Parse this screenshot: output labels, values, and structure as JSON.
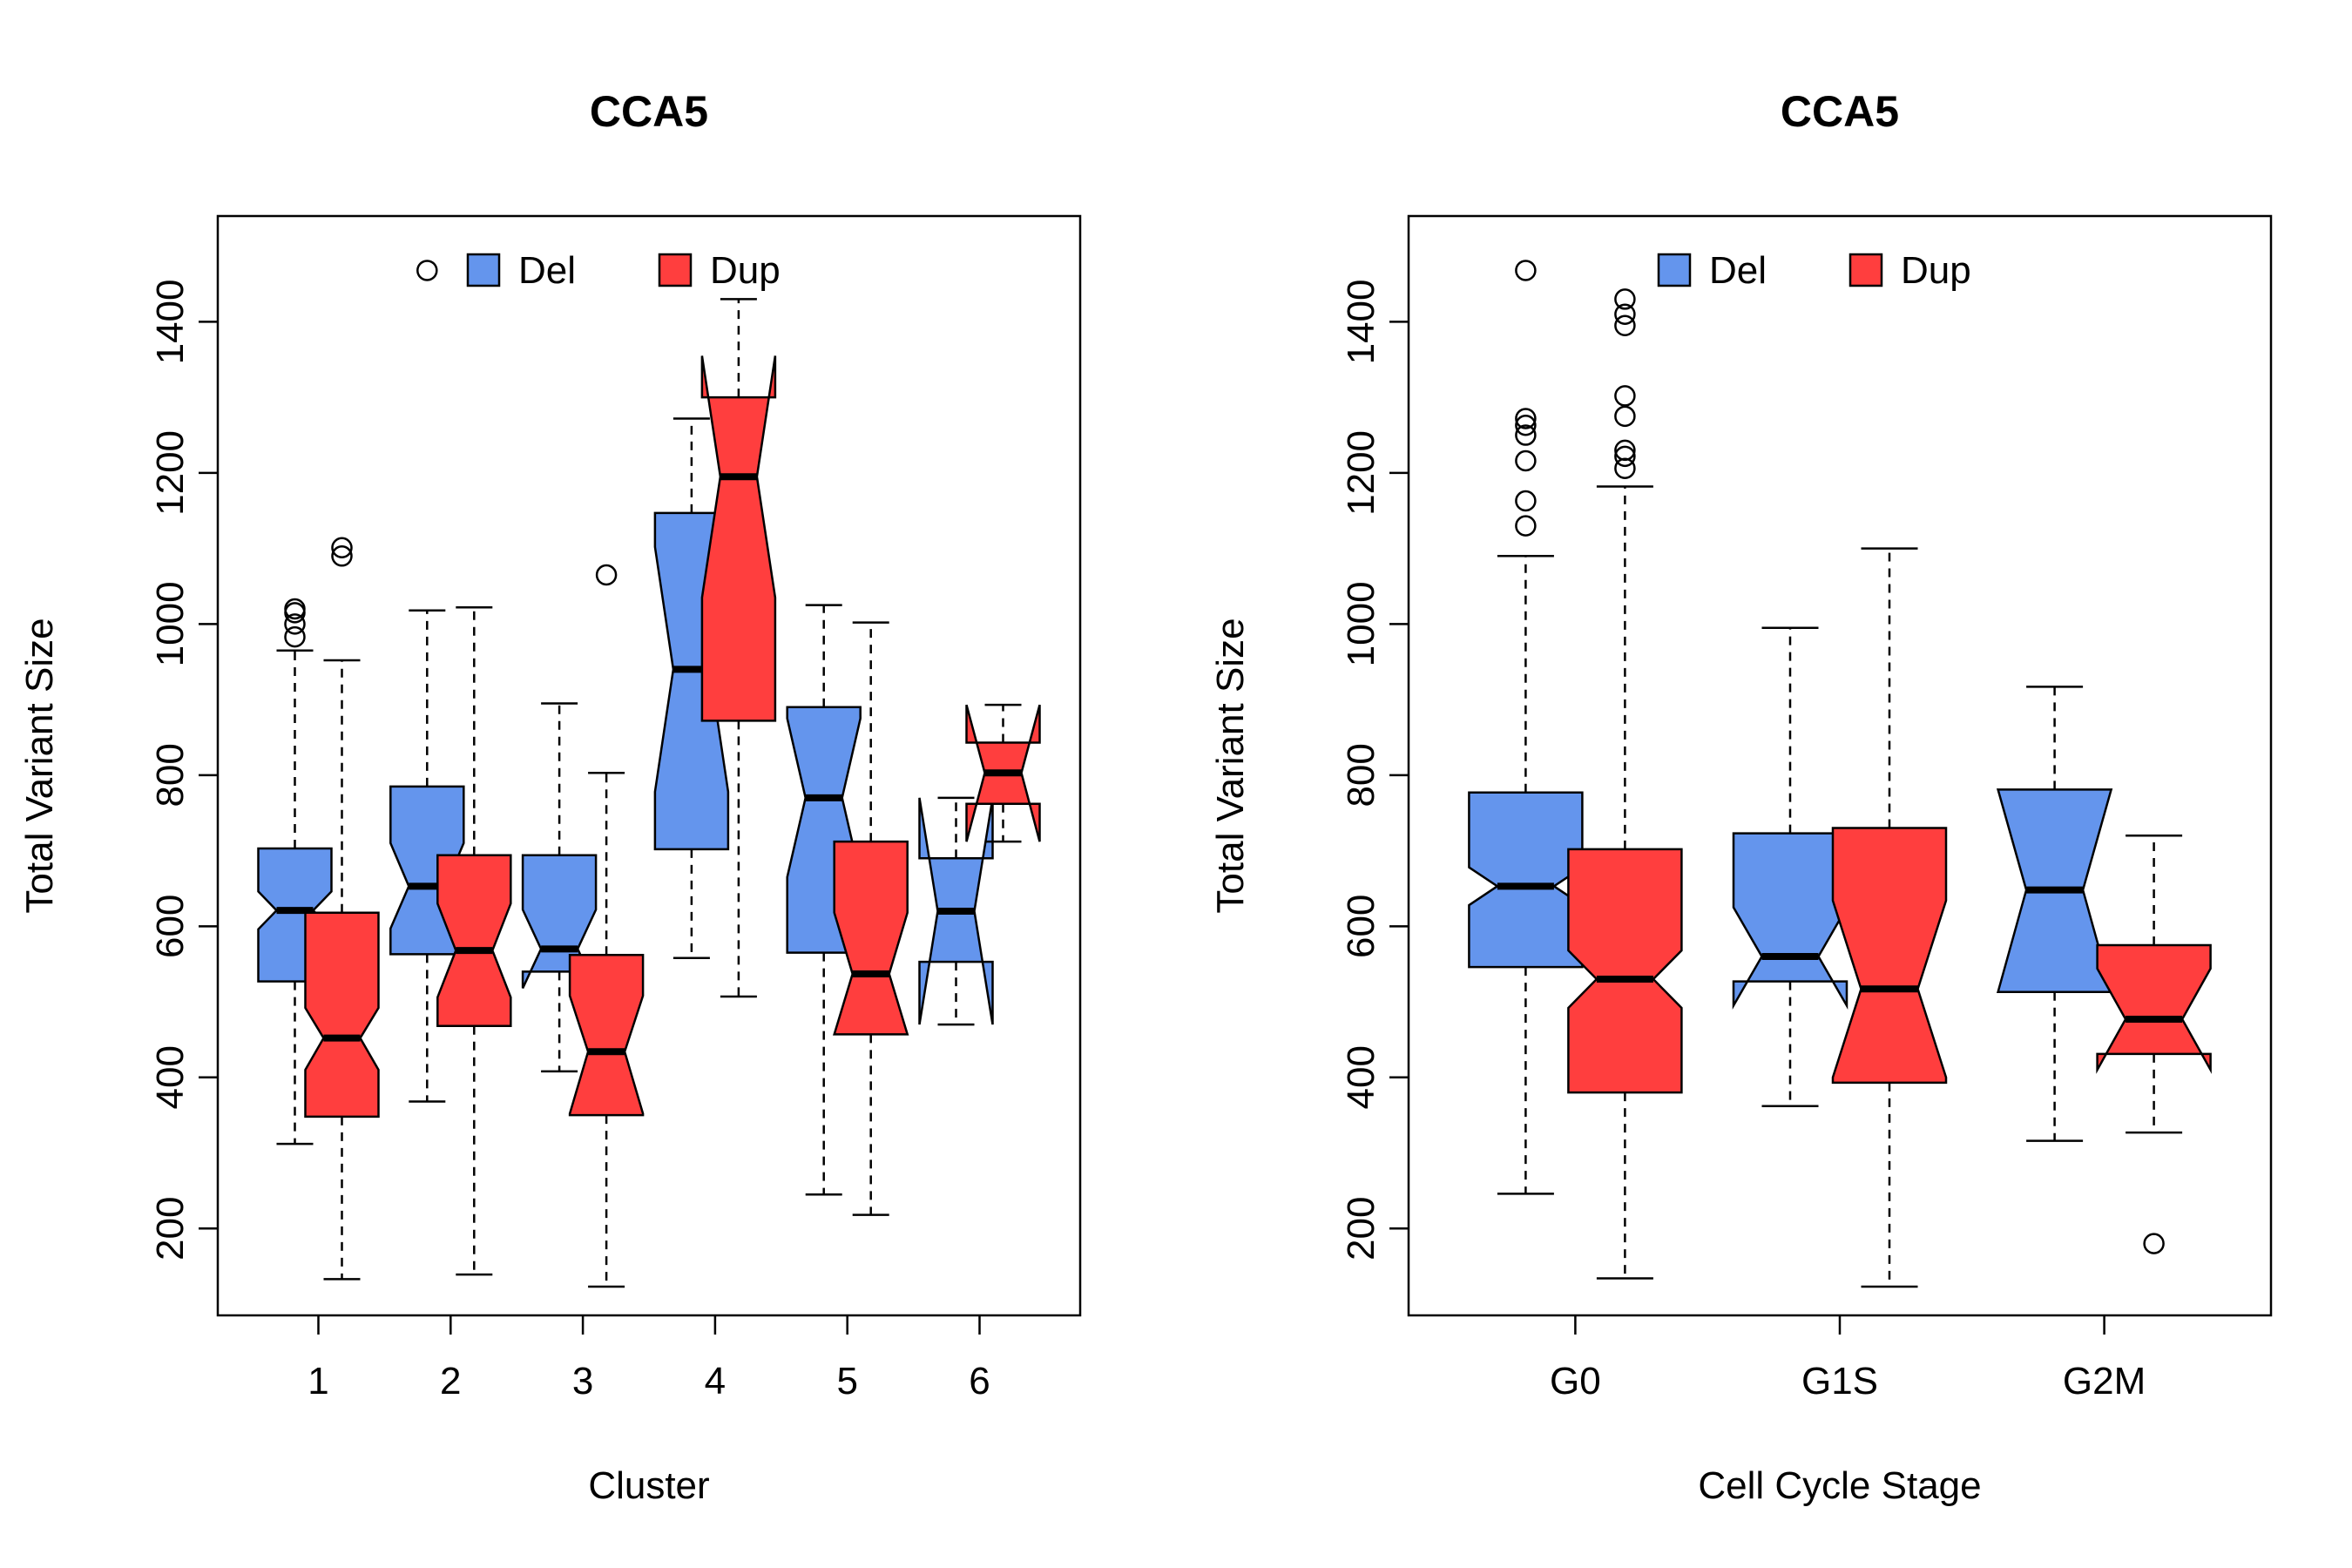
{
  "colors": {
    "Del": "#6495ED",
    "Dup": "#FF3E3E"
  },
  "chart_data": [
    {
      "type": "boxplot",
      "title": "CCA5",
      "xlabel": "Cluster",
      "ylabel": "Total Variant Size",
      "ylim": [
        85,
        1540
      ],
      "yticks": [
        200,
        400,
        600,
        800,
        1000,
        1200,
        1400
      ],
      "categories": [
        "1",
        "2",
        "3",
        "4",
        "5",
        "6"
      ],
      "notch": true,
      "legend": {
        "position": "top-center",
        "entries": [
          "Del",
          "Dup"
        ]
      },
      "series": [
        {
          "name": "Del",
          "color": "#6495ED",
          "boxes": [
            {
              "min": 312,
              "q1": 527,
              "median": 621,
              "q3": 703,
              "max": 965,
              "notch_low": 596,
              "notch_high": 646,
              "outliers": [
                983,
                1000,
                1015,
                1020
              ]
            },
            {
              "min": 368,
              "q1": 563,
              "median": 653,
              "q3": 785,
              "max": 1018,
              "notch_low": 597,
              "notch_high": 710,
              "outliers": [
                1468
              ]
            },
            {
              "min": 408,
              "q1": 540,
              "median": 570,
              "q3": 694,
              "max": 895,
              "notch_low": 518,
              "notch_high": 622,
              "outliers": []
            },
            {
              "min": 558,
              "q1": 702,
              "median": 940,
              "q3": 1147,
              "max": 1272,
              "notch_low": 778,
              "notch_high": 1102,
              "outliers": []
            },
            {
              "min": 245,
              "q1": 565,
              "median": 770,
              "q3": 890,
              "max": 1025,
              "notch_low": 665,
              "notch_high": 875,
              "outliers": []
            },
            {
              "min": 470,
              "q1": 553,
              "median": 620,
              "q3": 690,
              "max": 770,
              "notch_low": 470,
              "notch_high": 770,
              "outliers": []
            }
          ]
        },
        {
          "name": "Dup",
          "color": "#FF3E3E",
          "boxes": [
            {
              "min": 133,
              "q1": 348,
              "median": 452,
              "q3": 618,
              "max": 952,
              "notch_low": 410,
              "notch_high": 492,
              "outliers": [
                1090,
                1101
              ]
            },
            {
              "min": 139,
              "q1": 468,
              "median": 568,
              "q3": 694,
              "max": 1022,
              "notch_low": 506,
              "notch_high": 630,
              "outliers": []
            },
            {
              "min": 123,
              "q1": 350,
              "median": 434,
              "q3": 562,
              "max": 803,
              "notch_low": 352,
              "notch_high": 508,
              "outliers": [
                1065
              ]
            },
            {
              "min": 507,
              "q1": 872,
              "median": 1195,
              "q3": 1300,
              "max": 1430,
              "notch_low": 1035,
              "notch_high": 1355,
              "outliers": []
            },
            {
              "min": 218,
              "q1": 457,
              "median": 537,
              "q3": 712,
              "max": 1002,
              "notch_low": 457,
              "notch_high": 618,
              "outliers": []
            },
            {
              "min": 712,
              "q1": 762,
              "median": 803,
              "q3": 843,
              "max": 893,
              "notch_low": 712,
              "notch_high": 893,
              "outliers": []
            }
          ]
        }
      ]
    },
    {
      "type": "boxplot",
      "title": "CCA5",
      "xlabel": "Cell Cycle Stage",
      "ylabel": "Total Variant Size",
      "ylim": [
        85,
        1540
      ],
      "yticks": [
        200,
        400,
        600,
        800,
        1000,
        1200,
        1400
      ],
      "categories": [
        "G0",
        "G1S",
        "G2M"
      ],
      "notch": true,
      "legend": {
        "position": "top-center",
        "entries": [
          "Del",
          "Dup"
        ]
      },
      "series": [
        {
          "name": "Del",
          "color": "#6495ED",
          "boxes": [
            {
              "min": 246,
              "q1": 546,
              "median": 653,
              "q3": 777,
              "max": 1090,
              "notch_low": 628,
              "notch_high": 678,
              "outliers": [
                1130,
                1163,
                1216,
                1250,
                1263,
                1272,
                1468
              ]
            },
            {
              "min": 362,
              "q1": 527,
              "median": 560,
              "q3": 723,
              "max": 995,
              "notch_low": 495,
              "notch_high": 625,
              "outliers": []
            },
            {
              "min": 316,
              "q1": 513,
              "median": 648,
              "q3": 781,
              "max": 917,
              "notch_low": 513,
              "notch_high": 781,
              "outliers": []
            }
          ]
        },
        {
          "name": "Dup",
          "color": "#FF3E3E",
          "boxes": [
            {
              "min": 134,
              "q1": 380,
              "median": 530,
              "q3": 702,
              "max": 1182,
              "notch_low": 492,
              "notch_high": 568,
              "outliers": [
                1206,
                1222,
                1230,
                1275,
                1302,
                1395,
                1410,
                1430
              ]
            },
            {
              "min": 123,
              "q1": 393,
              "median": 517,
              "q3": 730,
              "max": 1100,
              "notch_low": 400,
              "notch_high": 634,
              "outliers": []
            },
            {
              "min": 327,
              "q1": 431,
              "median": 477,
              "q3": 575,
              "max": 720,
              "notch_low": 410,
              "notch_high": 544,
              "outliers": [
                180
              ]
            }
          ]
        }
      ]
    }
  ]
}
